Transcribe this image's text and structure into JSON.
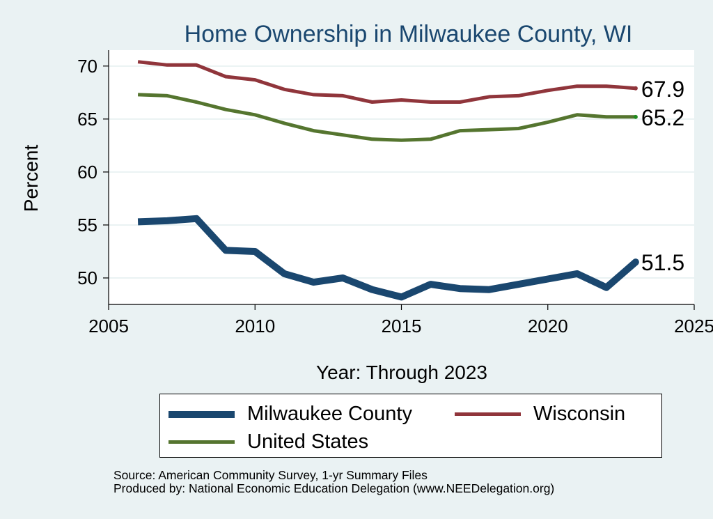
{
  "chart_data": {
    "type": "line",
    "title": "Home Ownership in Milwaukee County, WI",
    "xlabel": "Year: Through 2023",
    "ylabel": "Percent",
    "xlim": [
      2005,
      2025
    ],
    "ylim": [
      47.5,
      71.5
    ],
    "x_ticks": [
      2005,
      2010,
      2015,
      2020,
      2025
    ],
    "y_ticks": [
      50,
      55,
      60,
      65,
      70
    ],
    "grid": true,
    "legend_position": "bottom",
    "x": [
      2006,
      2007,
      2008,
      2009,
      2010,
      2011,
      2012,
      2013,
      2014,
      2015,
      2016,
      2017,
      2018,
      2019,
      2020,
      2021,
      2022,
      2023
    ],
    "series": [
      {
        "name": "Milwaukee County",
        "color": "#1a476f",
        "values": [
          55.3,
          55.4,
          55.6,
          52.6,
          52.5,
          50.4,
          49.6,
          50.0,
          48.9,
          48.2,
          49.4,
          49.0,
          48.9,
          49.4,
          49.9,
          50.4,
          49.1,
          51.5
        ],
        "end_label": "51.5"
      },
      {
        "name": "Wisconsin",
        "color": "#90353b",
        "values": [
          70.4,
          70.1,
          70.1,
          69.0,
          68.7,
          67.8,
          67.3,
          67.2,
          66.6,
          66.8,
          66.6,
          66.6,
          67.1,
          67.2,
          67.7,
          68.1,
          68.1,
          67.9
        ],
        "end_label": "67.9"
      },
      {
        "name": "United States",
        "color": "#55752f",
        "values": [
          67.3,
          67.2,
          66.6,
          65.9,
          65.4,
          64.6,
          63.9,
          63.5,
          63.1,
          63.0,
          63.1,
          63.9,
          64.0,
          64.1,
          64.7,
          65.4,
          65.2,
          65.2
        ],
        "end_label": "65.2"
      }
    ]
  },
  "legend": {
    "items": [
      {
        "label": "Milwaukee County",
        "color": "#1a476f"
      },
      {
        "label": "Wisconsin",
        "color": "#90353b"
      },
      {
        "label": "United States",
        "color": "#55752f"
      }
    ]
  },
  "source": {
    "line1": "Source: American Community Survey, 1-yr Summary Files",
    "line2": "Produced by: National Economic Education Delegation (www.NEEDelegation.org)"
  }
}
